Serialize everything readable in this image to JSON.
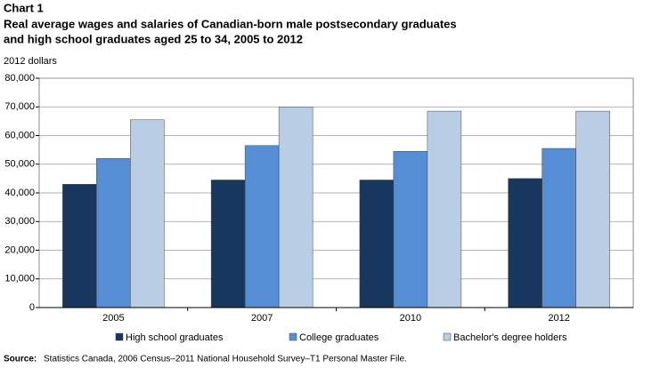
{
  "chart_data": {
    "type": "bar",
    "label": "Chart 1",
    "title": [
      "Real average wages and salaries of Canadian-born male postsecondary graduates",
      "and high school graduates aged 25 to 34, 2005 to 2012"
    ],
    "y_label": "2012 dollars",
    "categories": [
      "2005",
      "2007",
      "2010",
      "2012"
    ],
    "series": [
      {
        "name": "High school graduates",
        "color": "#17375e",
        "values": [
          43000,
          44500,
          44500,
          45000
        ]
      },
      {
        "name": "College graduates",
        "color": "#558ed5",
        "values": [
          52000,
          56500,
          54500,
          55500
        ]
      },
      {
        "name": "Bachelor's degree holders",
        "color": "#b9cde5",
        "values": [
          65500,
          70000,
          68500,
          68500
        ]
      }
    ],
    "ylim": [
      0,
      80000
    ],
    "yticks": [
      0,
      {
        "value": 10000,
        "label": "10,000"
      },
      {
        "value": 20000,
        "label": "20,000"
      },
      {
        "value": 30000,
        "label": "30,000"
      },
      {
        "value": 40000,
        "label": "40,000"
      },
      {
        "value": 50000,
        "label": "50,000"
      },
      {
        "value": 60000,
        "label": "60,000"
      },
      {
        "value": 70000,
        "label": "70,000"
      },
      {
        "value": 80000,
        "label": "80,000"
      }
    ],
    "grid": true,
    "legend": "bottom",
    "source": {
      "label": "Source:",
      "text": "Statistics Canada, 2006 Census–2011 National Household Survey–T1 Personal Master File."
    }
  }
}
